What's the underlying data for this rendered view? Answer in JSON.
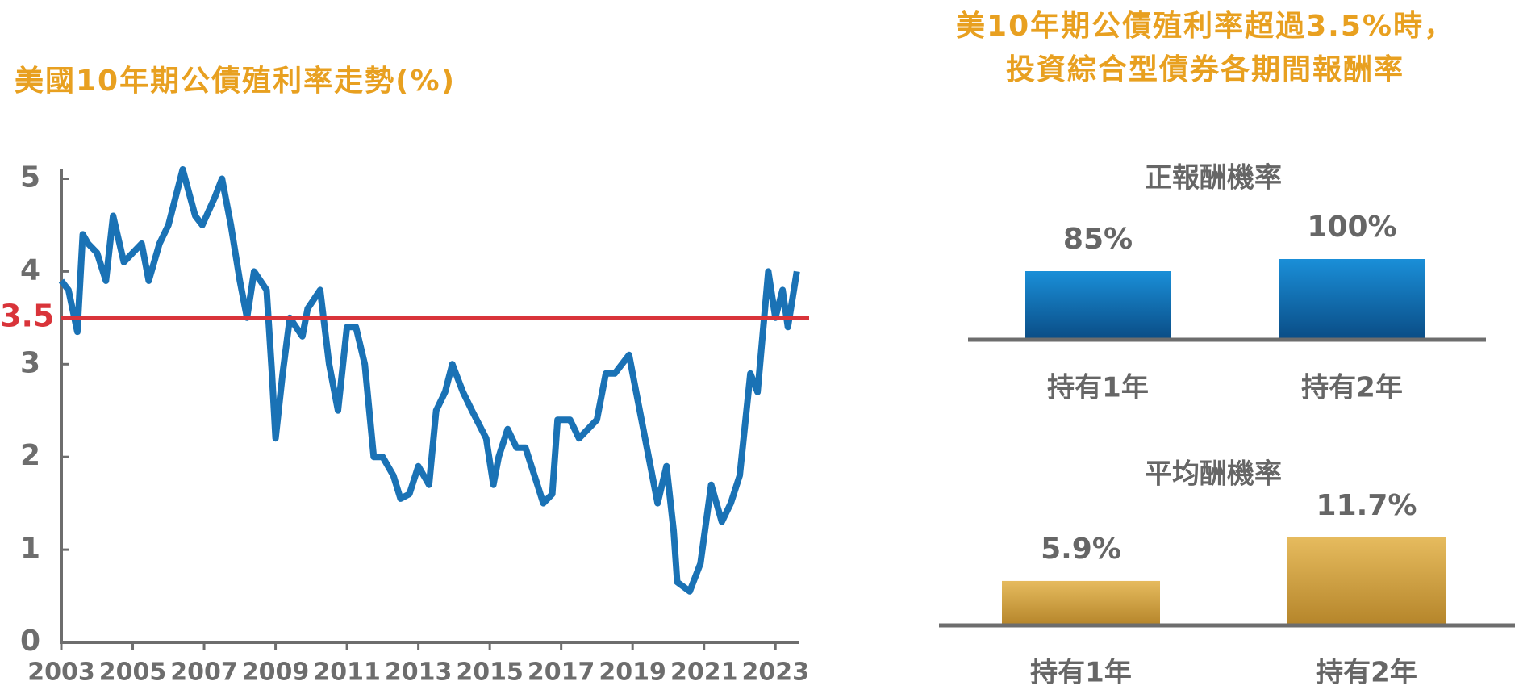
{
  "panel_title": [
    "美10年期公債殖利率超過3.5%時，",
    "投資綜合型債券各期間報酬率"
  ],
  "chart_data": [
    {
      "type": "line",
      "title": "美國10年期公債殖利率走勢(%)",
      "color": "#1a72b5",
      "x": [
        2003.0,
        2003.2,
        2003.45,
        2003.6,
        2003.75,
        2004.0,
        2004.25,
        2004.45,
        2004.75,
        2005.0,
        2005.25,
        2005.45,
        2005.75,
        2006.0,
        2006.4,
        2006.75,
        2006.95,
        2007.3,
        2007.5,
        2007.75,
        2008.0,
        2008.2,
        2008.4,
        2008.75,
        2008.9,
        2009.0,
        2009.2,
        2009.4,
        2009.75,
        2009.9,
        2010.25,
        2010.5,
        2010.75,
        2011.0,
        2011.25,
        2011.5,
        2011.75,
        2012.0,
        2012.3,
        2012.5,
        2012.75,
        2013.0,
        2013.3,
        2013.5,
        2013.75,
        2013.95,
        2014.25,
        2014.5,
        2014.9,
        2015.1,
        2015.25,
        2015.5,
        2015.75,
        2016.0,
        2016.25,
        2016.5,
        2016.75,
        2016.9,
        2017.25,
        2017.5,
        2017.75,
        2018.0,
        2018.25,
        2018.5,
        2018.9,
        2019.1,
        2019.4,
        2019.7,
        2019.95,
        2020.15,
        2020.25,
        2020.6,
        2020.9,
        2021.2,
        2021.5,
        2021.75,
        2022.0,
        2022.3,
        2022.5,
        2022.8,
        2023.0,
        2023.2,
        2023.35,
        2023.6
      ],
      "values": [
        3.9,
        3.8,
        3.35,
        4.4,
        4.3,
        4.2,
        3.9,
        4.6,
        4.1,
        4.2,
        4.3,
        3.9,
        4.3,
        4.5,
        5.1,
        4.6,
        4.5,
        4.8,
        5.0,
        4.5,
        3.9,
        3.5,
        4.0,
        3.8,
        2.9,
        2.2,
        2.9,
        3.5,
        3.3,
        3.6,
        3.8,
        3.0,
        2.5,
        3.4,
        3.4,
        3.0,
        2.0,
        2.0,
        1.8,
        1.55,
        1.6,
        1.9,
        1.7,
        2.5,
        2.7,
        3.0,
        2.7,
        2.5,
        2.2,
        1.7,
        2.0,
        2.3,
        2.1,
        2.1,
        1.8,
        1.5,
        1.6,
        2.4,
        2.4,
        2.2,
        2.3,
        2.4,
        2.9,
        2.9,
        3.1,
        2.7,
        2.1,
        1.5,
        1.9,
        1.2,
        0.65,
        0.55,
        0.85,
        1.7,
        1.3,
        1.5,
        1.8,
        2.9,
        2.7,
        4.0,
        3.5,
        3.8,
        3.4,
        4.0
      ],
      "xlim": [
        2003,
        2023.65
      ],
      "xticks": [
        2003,
        2005,
        2007,
        2009,
        2011,
        2013,
        2015,
        2017,
        2019,
        2021,
        2023
      ],
      "ylim": [
        0,
        5.1
      ],
      "yticks": [
        0,
        1,
        2,
        3,
        4,
        5
      ],
      "reference_line": {
        "value": 3.5,
        "label": "3.5",
        "color": "#d9343a"
      }
    },
    {
      "type": "bar",
      "title": "正報酬機率",
      "categories": [
        "持有1年",
        "持有2年"
      ],
      "values": [
        85,
        100
      ],
      "value_labels": [
        "85%",
        "100%"
      ],
      "gradient": [
        "#1a8fd8",
        "#0a4c85"
      ],
      "ylim": [
        0,
        100
      ]
    },
    {
      "type": "bar",
      "title": "平均酬機率",
      "categories": [
        "持有1年",
        "持有2年"
      ],
      "values": [
        5.9,
        11.7
      ],
      "value_labels": [
        "5.9%",
        "11.7%"
      ],
      "gradient": [
        "#e6bb5e",
        "#b5852a"
      ],
      "ylim": [
        0,
        12
      ]
    }
  ]
}
